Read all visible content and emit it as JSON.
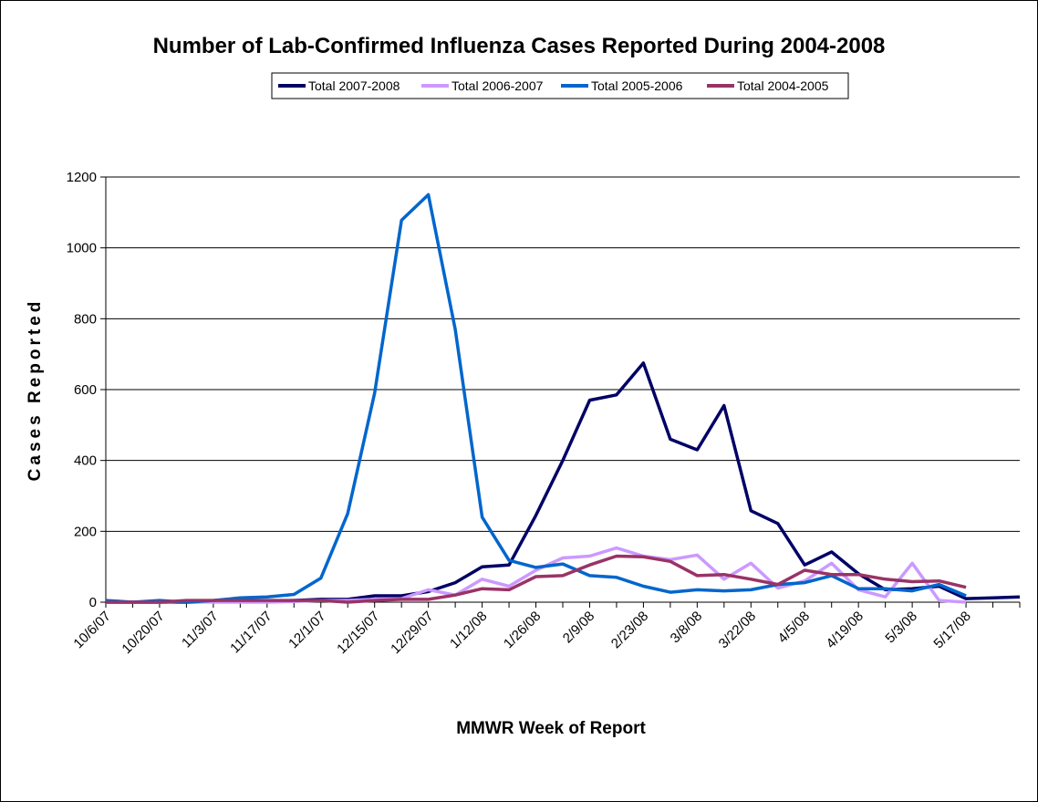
{
  "chart_data": {
    "type": "line",
    "title": "Number of Lab-Confirmed Influenza Cases Reported During 2004-2008",
    "x_label": "MMWR Week of Report",
    "y_label": "Cases Reported",
    "categories": [
      "10/6/07",
      null,
      "10/20/07",
      null,
      "11/3/07",
      null,
      "11/17/07",
      null,
      "12/1/07",
      null,
      "12/15/07",
      null,
      "12/29/07",
      null,
      "1/12/08",
      null,
      "1/26/08",
      null,
      "2/9/08",
      null,
      "2/23/08",
      null,
      "3/8/08",
      null,
      "3/22/08",
      null,
      "4/5/08",
      null,
      "4/19/08",
      null,
      "5/3/08",
      null,
      "5/17/08",
      null,
      null
    ],
    "series": [
      {
        "name": "Total 2007-2008",
        "color": "#000066",
        "values": [
          0,
          0,
          0,
          0,
          2,
          3,
          3,
          5,
          8,
          8,
          18,
          18,
          30,
          55,
          100,
          105,
          245,
          400,
          570,
          585,
          675,
          460,
          430,
          555,
          258,
          222,
          105,
          142,
          80,
          35,
          38,
          45,
          10,
          12,
          15
        ]
      },
      {
        "name": "Total 2006-2007",
        "color": "#cc99ff",
        "values": [
          0,
          0,
          0,
          2,
          0,
          0,
          0,
          2,
          5,
          5,
          8,
          10,
          35,
          20,
          65,
          45,
          90,
          125,
          130,
          153,
          130,
          120,
          133,
          65,
          110,
          40,
          60,
          110,
          35,
          15,
          110,
          5,
          0,
          null,
          null
        ]
      },
      {
        "name": "Total 2005-2006",
        "color": "#0066cc",
        "values": [
          5,
          0,
          5,
          0,
          5,
          12,
          15,
          22,
          68,
          250,
          590,
          1078,
          1150,
          770,
          240,
          118,
          98,
          108,
          75,
          70,
          45,
          28,
          35,
          32,
          35,
          50,
          55,
          75,
          38,
          38,
          32,
          50,
          18,
          null,
          null
        ]
      },
      {
        "name": "Total 2004-2005",
        "color": "#993366",
        "values": [
          0,
          0,
          0,
          5,
          5,
          5,
          5,
          5,
          5,
          0,
          5,
          8,
          8,
          20,
          38,
          35,
          72,
          75,
          105,
          130,
          128,
          115,
          75,
          78,
          65,
          50,
          90,
          78,
          78,
          65,
          58,
          60,
          42,
          null,
          null
        ]
      }
    ],
    "ylim": [
      0,
      1200
    ],
    "yticks": [
      0,
      200,
      400,
      600,
      800,
      1000,
      1200
    ],
    "grid": true,
    "legend": "top"
  }
}
